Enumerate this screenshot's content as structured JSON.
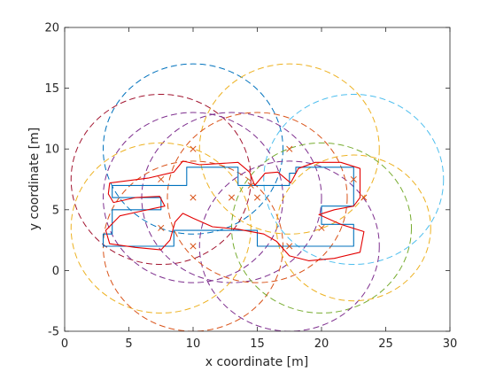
{
  "chart_data": {
    "type": "scatter",
    "title": "",
    "xlabel": "x coordinate [m]",
    "ylabel": "y coordinate [m]",
    "xlim": [
      0,
      30
    ],
    "ylim": [
      -5,
      20
    ],
    "xticks": [
      "0",
      "5",
      "10",
      "15",
      "20",
      "25",
      "30"
    ],
    "yticks": [
      "-5",
      "0",
      "5",
      "10",
      "15",
      "20"
    ],
    "grid": false,
    "legend": "none",
    "colors": {
      "axes": "#262626",
      "blue_path": "#0072BD",
      "red_path": "#E30000",
      "markers": "#D95319",
      "circle_palette": [
        "#0072BD",
        "#EDB120",
        "#7E2F8E",
        "#A2142F",
        "#4DBEEE",
        "#D95319",
        "#77AC30"
      ]
    },
    "circles": [
      {
        "cx": 10.0,
        "cy": 10.0,
        "r": 7.0,
        "color": "#0072BD"
      },
      {
        "cx": 17.5,
        "cy": 10.0,
        "r": 7.0,
        "color": "#EDB120"
      },
      {
        "cx": 7.5,
        "cy": 7.5,
        "r": 7.0,
        "color": "#A2142F"
      },
      {
        "cx": 13.0,
        "cy": 6.0,
        "r": 7.0,
        "color": "#7E2F8E"
      },
      {
        "cx": 22.5,
        "cy": 7.5,
        "r": 7.0,
        "color": "#4DBEEE"
      },
      {
        "cx": 7.5,
        "cy": 3.5,
        "r": 7.0,
        "color": "#EDB120"
      },
      {
        "cx": 10.0,
        "cy": 2.0,
        "r": 7.0,
        "color": "#D95319"
      },
      {
        "cx": 20.0,
        "cy": 3.5,
        "r": 7.0,
        "color": "#77AC30"
      },
      {
        "cx": 17.5,
        "cy": 2.0,
        "r": 7.0,
        "color": "#7E2F8E"
      },
      {
        "cx": 10.0,
        "cy": 6.0,
        "r": 7.0,
        "color": "#7E2F8E"
      },
      {
        "cx": 15.0,
        "cy": 6.0,
        "r": 7.0,
        "color": "#D95319"
      },
      {
        "cx": 22.5,
        "cy": 3.5,
        "r": 6.0,
        "color": "#EDB120"
      }
    ],
    "markers": [
      [
        10.0,
        10.0
      ],
      [
        17.5,
        10.0
      ],
      [
        7.5,
        7.5
      ],
      [
        13.0,
        6.0
      ],
      [
        22.5,
        7.5
      ],
      [
        7.5,
        3.5
      ],
      [
        10.0,
        2.0
      ],
      [
        20.0,
        3.5
      ],
      [
        17.5,
        2.0
      ],
      [
        10.0,
        6.0
      ],
      [
        15.0,
        6.0
      ],
      [
        23.3,
        6.0
      ],
      [
        14.5,
        7.0
      ]
    ],
    "series": [
      {
        "name": "",
        "color": "#0072BD",
        "points": [
          [
            3.7,
            7.0
          ],
          [
            9.5,
            7.0
          ],
          [
            9.5,
            8.5
          ],
          [
            13.5,
            8.5
          ],
          [
            13.5,
            7.0
          ],
          [
            17.5,
            7.0
          ],
          [
            17.5,
            8.0
          ],
          [
            18.0,
            8.0
          ],
          [
            18.0,
            8.5
          ],
          [
            22.5,
            8.5
          ],
          [
            22.5,
            5.3
          ],
          [
            20.0,
            5.3
          ],
          [
            20.0,
            3.8
          ],
          [
            22.5,
            3.8
          ],
          [
            22.5,
            2.0
          ],
          [
            15.0,
            2.0
          ],
          [
            15.0,
            3.3
          ],
          [
            8.5,
            3.3
          ],
          [
            8.5,
            2.0
          ],
          [
            3.0,
            2.0
          ],
          [
            3.0,
            3.0
          ],
          [
            3.7,
            3.0
          ],
          [
            3.7,
            5.0
          ],
          [
            7.5,
            5.0
          ],
          [
            7.5,
            6.0
          ],
          [
            3.7,
            6.0
          ],
          [
            3.7,
            7.0
          ]
        ]
      },
      {
        "name": "",
        "color": "#E30000",
        "points": [
          [
            3.5,
            7.2
          ],
          [
            6.5,
            7.6
          ],
          [
            8.5,
            8.1
          ],
          [
            9.2,
            9.0
          ],
          [
            10.5,
            8.7
          ],
          [
            12.0,
            8.8
          ],
          [
            13.5,
            8.9
          ],
          [
            14.4,
            8.1
          ],
          [
            14.8,
            7.0
          ],
          [
            15.6,
            8.0
          ],
          [
            16.6,
            8.1
          ],
          [
            17.6,
            7.2
          ],
          [
            18.2,
            8.4
          ],
          [
            19.5,
            8.9
          ],
          [
            21.5,
            8.9
          ],
          [
            23.0,
            8.4
          ],
          [
            23.0,
            6.0
          ],
          [
            22.5,
            5.3
          ],
          [
            21.0,
            5.0
          ],
          [
            19.8,
            4.6
          ],
          [
            21.5,
            3.8
          ],
          [
            23.3,
            3.2
          ],
          [
            23.0,
            1.5
          ],
          [
            21.0,
            1.0
          ],
          [
            19.0,
            0.8
          ],
          [
            17.5,
            1.2
          ],
          [
            16.5,
            2.4
          ],
          [
            15.5,
            3.0
          ],
          [
            13.5,
            3.4
          ],
          [
            11.5,
            3.6
          ],
          [
            10.0,
            4.3
          ],
          [
            9.2,
            4.7
          ],
          [
            8.6,
            4.0
          ],
          [
            8.2,
            2.5
          ],
          [
            7.5,
            1.7
          ],
          [
            5.5,
            1.9
          ],
          [
            3.5,
            2.2
          ],
          [
            3.2,
            3.3
          ],
          [
            4.3,
            4.5
          ],
          [
            5.6,
            4.8
          ],
          [
            7.8,
            5.3
          ],
          [
            7.4,
            6.1
          ],
          [
            5.5,
            6.0
          ],
          [
            3.8,
            5.6
          ],
          [
            3.4,
            6.3
          ],
          [
            3.5,
            7.2
          ]
        ]
      }
    ]
  }
}
